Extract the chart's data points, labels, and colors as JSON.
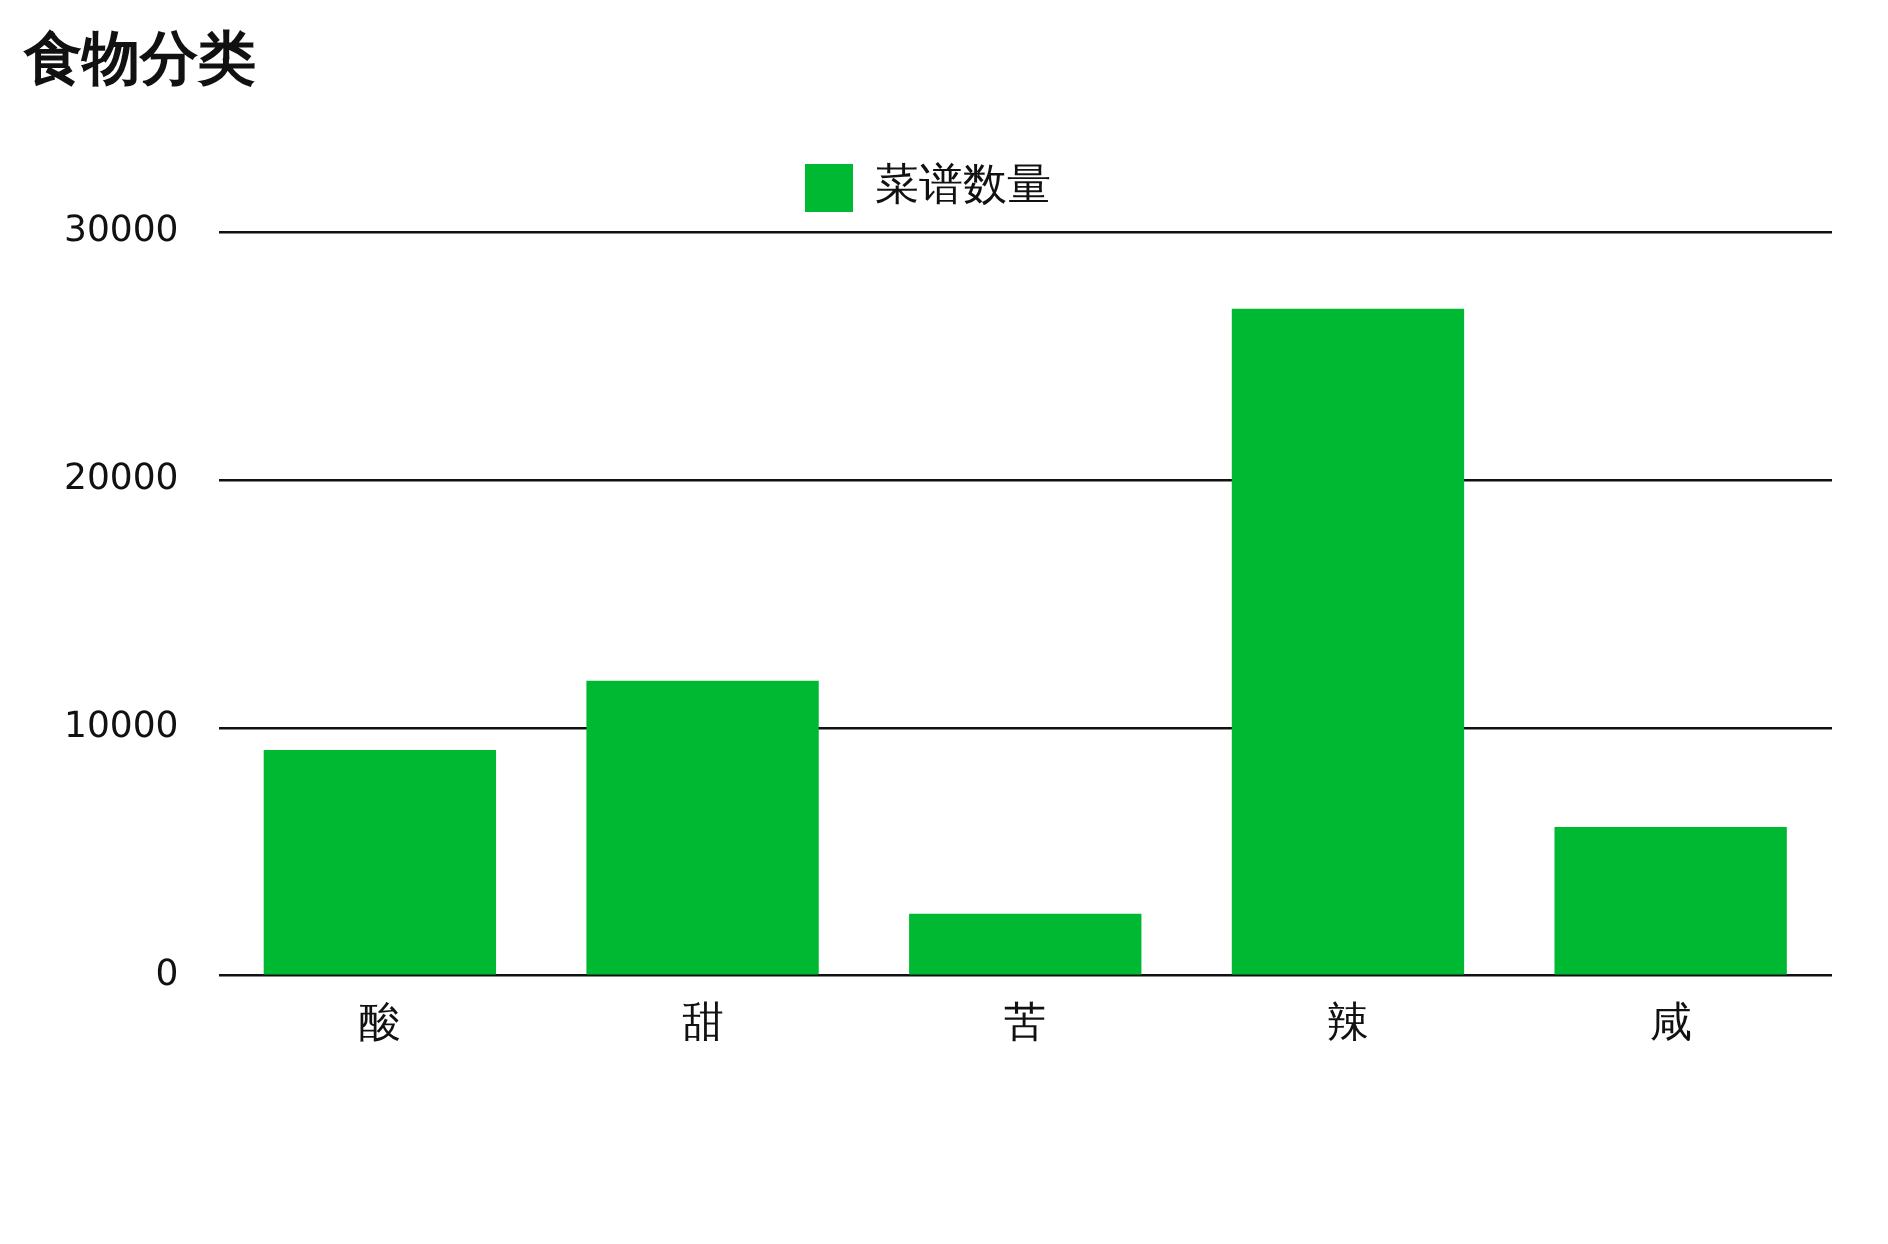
{
  "chart_data": {
    "type": "bar",
    "title": "食物分类",
    "categories": [
      "酸",
      "甜",
      "苦",
      "辣",
      "咸"
    ],
    "series": [
      {
        "name": "菜谱数量",
        "color": "#00b933",
        "values": [
          9100,
          11900,
          2500,
          26900,
          6000
        ]
      }
    ],
    "ylim": [
      0,
      30000
    ],
    "yticks": [
      0,
      10000,
      20000,
      30000
    ],
    "grid": "y",
    "legend": "top"
  }
}
